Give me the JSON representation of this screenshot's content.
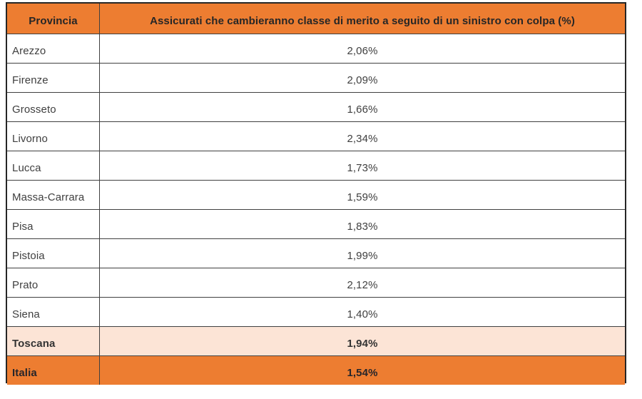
{
  "chart_data": {
    "type": "table",
    "columns": [
      "Provincia",
      "Assicurati che cambieranno classe di merito a seguito di un sinistro con colpa (%)"
    ],
    "rows": [
      [
        "Arezzo",
        "2,06%"
      ],
      [
        "Firenze",
        "2,09%"
      ],
      [
        "Grosseto",
        "1,66%"
      ],
      [
        "Livorno",
        "2,34%"
      ],
      [
        "Lucca",
        "1,73%"
      ],
      [
        "Massa-Carrara",
        "1,59%"
      ],
      [
        "Pisa",
        "1,83%"
      ],
      [
        "Pistoia",
        "1,99%"
      ],
      [
        "Prato",
        "2,12%"
      ],
      [
        "Siena",
        "1,40%"
      ],
      [
        "Toscana",
        "1,94%"
      ],
      [
        "Italia",
        "1,54%"
      ]
    ],
    "values_numeric": [
      2.06,
      2.09,
      1.66,
      2.34,
      1.73,
      1.59,
      1.83,
      1.99,
      2.12,
      1.4,
      1.94,
      1.54
    ],
    "summary_rows": [
      "Toscana",
      "Italia"
    ]
  },
  "colors": {
    "header_bg": "#ED7D31",
    "region_total_bg": "#FCE4D6",
    "country_total_bg": "#ED7D31",
    "border": "#404040",
    "text": "#3F3F3F"
  }
}
